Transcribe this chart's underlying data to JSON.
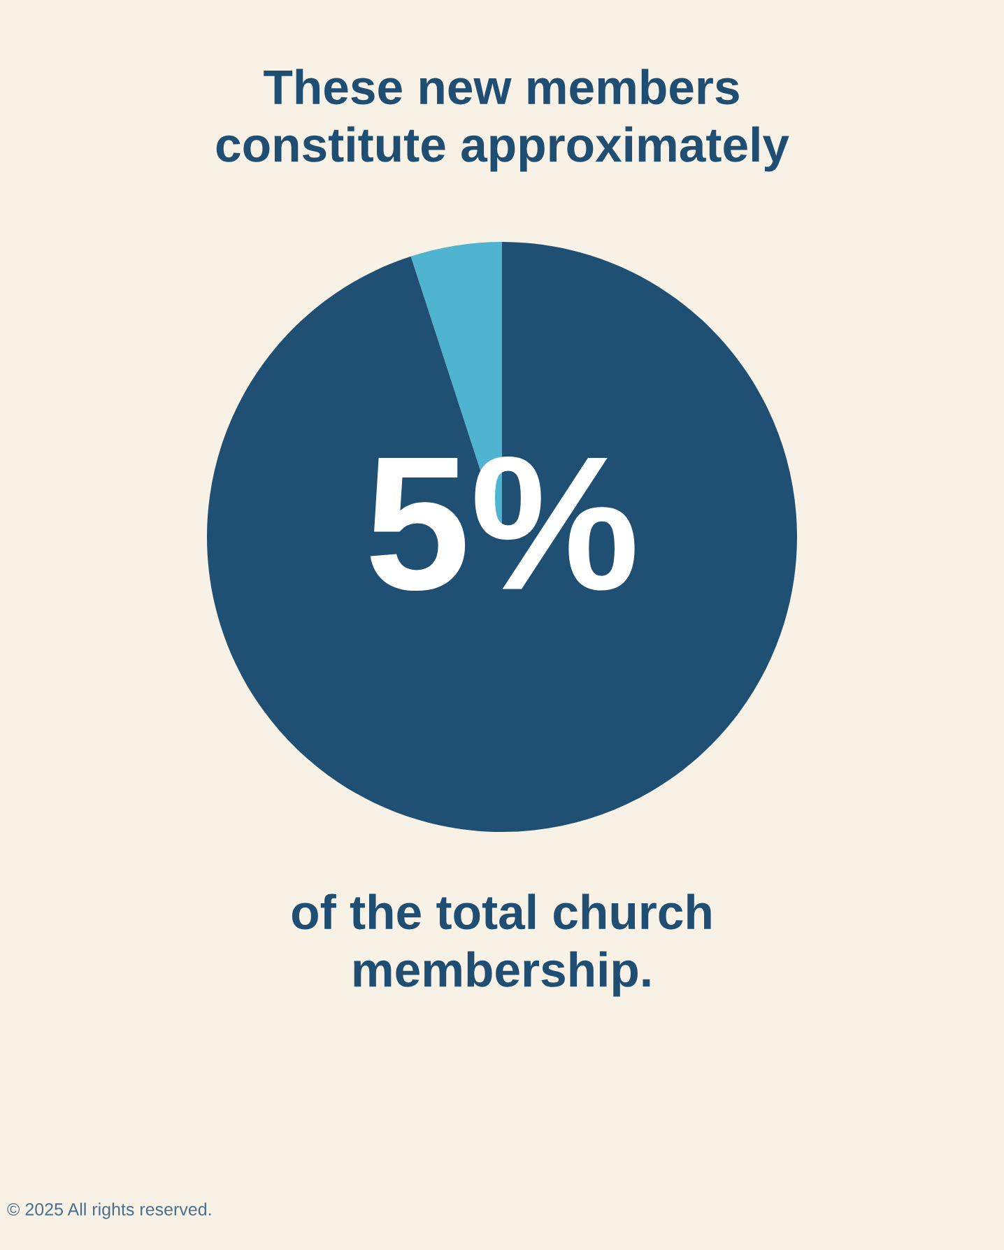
{
  "chart_data": {
    "type": "pie",
    "title": "These new members\nconstitute approximately",
    "categories": [
      null,
      null
    ],
    "values": [
      5,
      95
    ],
    "colors": [
      "#4fb4cf",
      "#1f4f73"
    ],
    "annotations": [
      "5%",
      "of the total church\nmembership.",
      "© 2025 All rights reserved."
    ]
  }
}
